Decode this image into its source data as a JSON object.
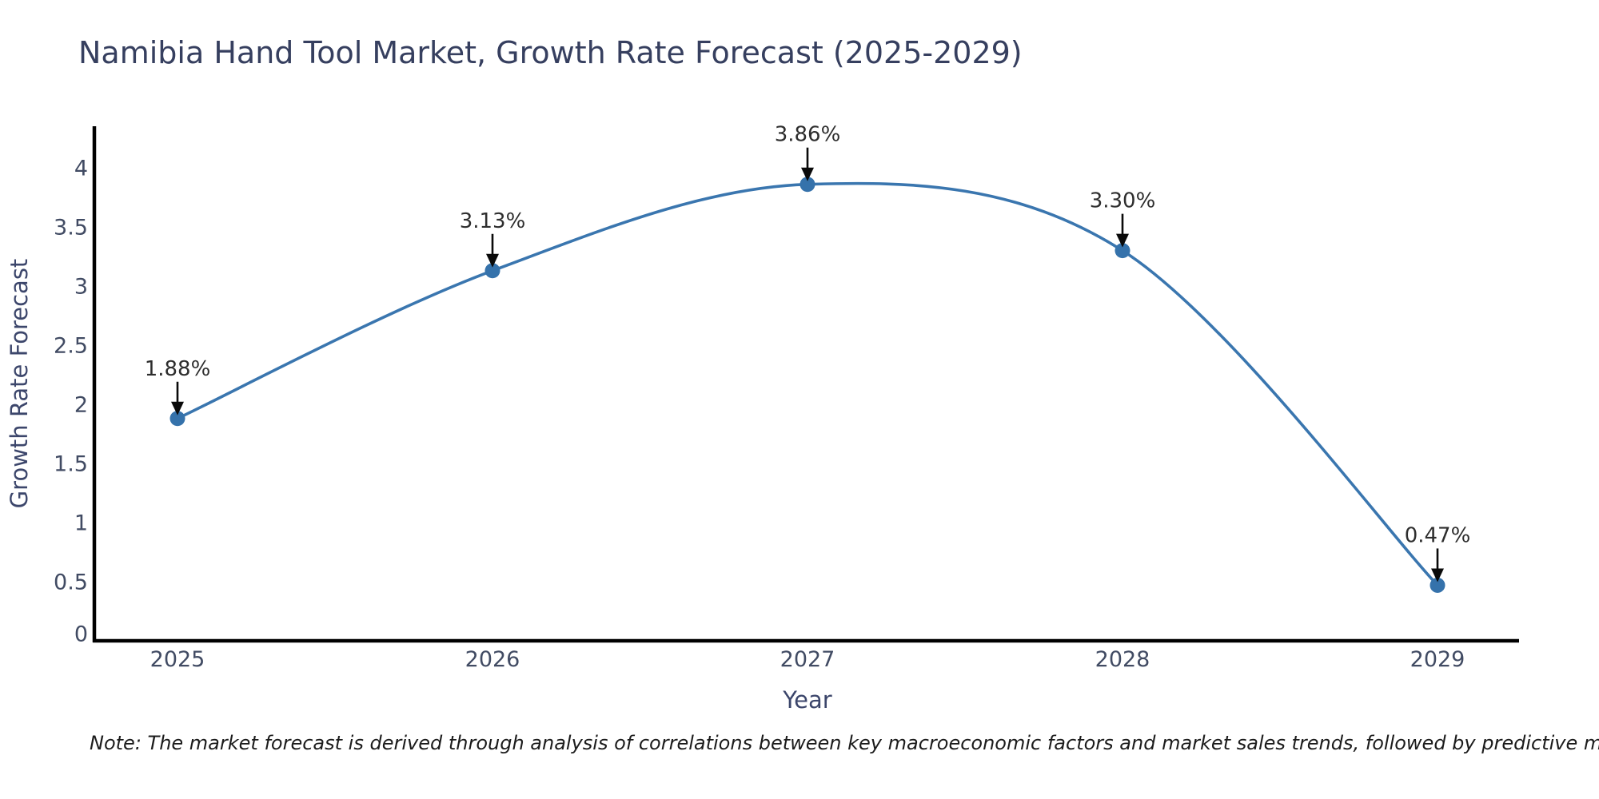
{
  "title": "Namibia Hand Tool Market, Growth Rate Forecast (2025-2029)",
  "note": "Note: The market forecast is derived through analysis of correlations between key macroeconomic factors and market sales trends, followed by predictive modeling to project future sales",
  "chart_data": {
    "type": "line",
    "title": "Namibia Hand Tool Market, Growth Rate Forecast (2025-2029)",
    "xlabel": "Year",
    "ylabel": "Growth Rate Forecast",
    "categories": [
      "2025",
      "2026",
      "2027",
      "2028",
      "2029"
    ],
    "values": [
      1.88,
      3.13,
      3.86,
      3.3,
      0.47
    ],
    "point_labels": [
      "1.88%",
      "3.13%",
      "3.86%",
      "3.30%",
      "0.47%"
    ],
    "yticks": [
      0,
      0.5,
      1,
      1.5,
      2,
      2.5,
      3,
      3.5,
      4
    ],
    "ylim": [
      0,
      4.35
    ],
    "grid": false,
    "legend": "none",
    "line_shape": "spline",
    "colors": {
      "line": "#3a76af",
      "marker": "#3572ab",
      "axis_spine": "#000000",
      "tick_label": "#414b63",
      "axis_title": "#3c466b",
      "annotation_text": "#2e2e2e",
      "annotation_arrow": "#0a0a0a",
      "title_text": "#363f5f"
    }
  }
}
